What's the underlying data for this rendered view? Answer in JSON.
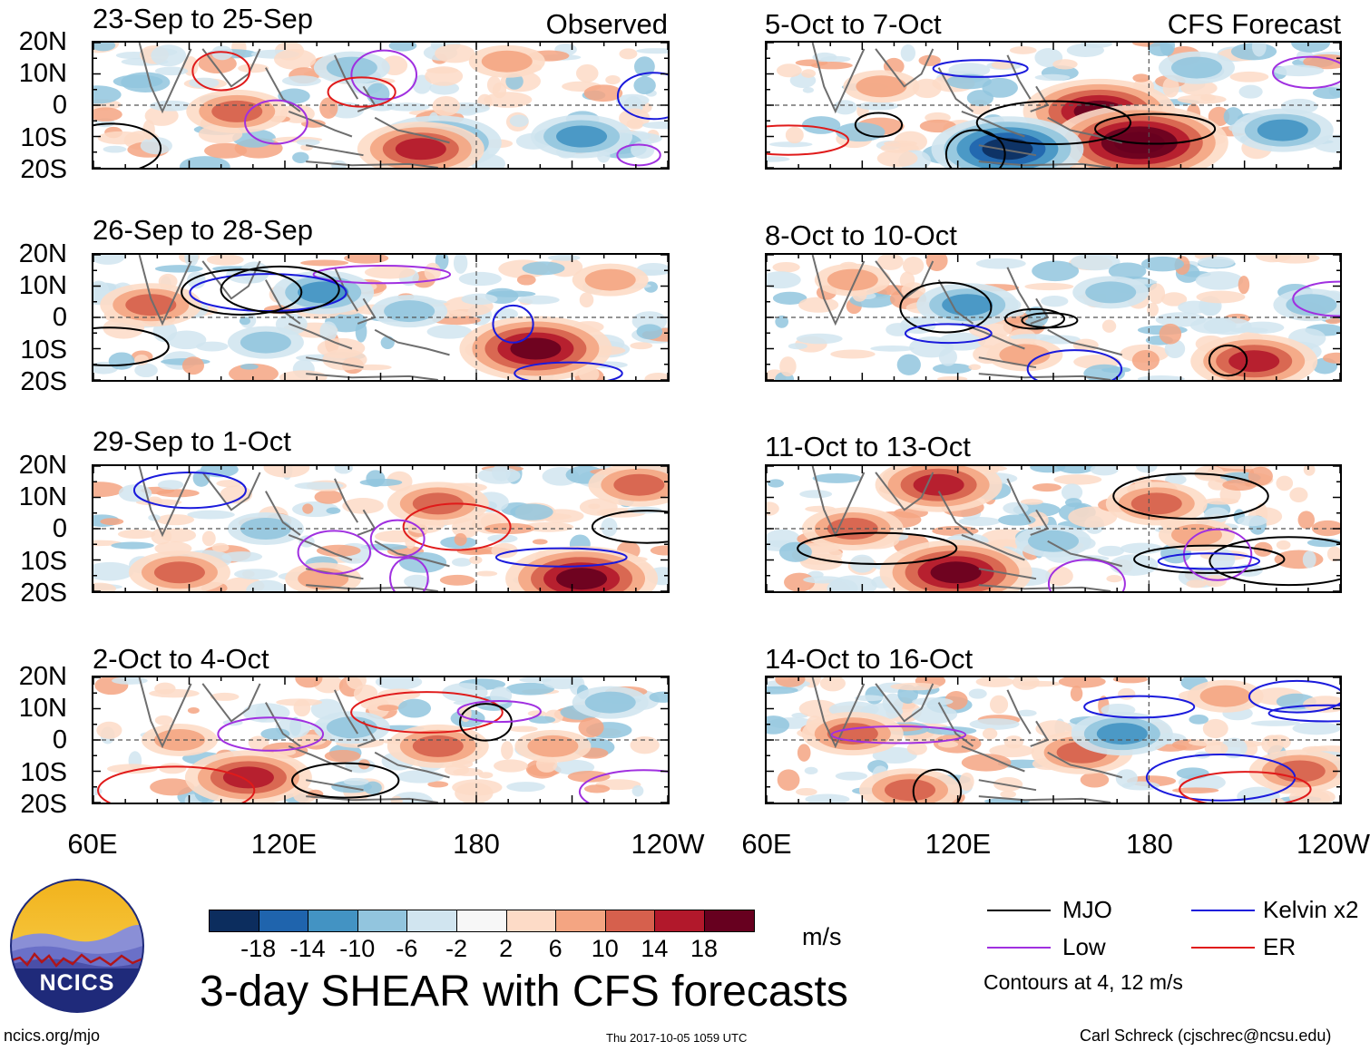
{
  "header": {
    "observed_label": "Observed",
    "forecast_label": "CFS Forecast"
  },
  "panels": {
    "left": [
      {
        "title": "23-Sep to 25-Sep"
      },
      {
        "title": "26-Sep to 28-Sep"
      },
      {
        "title": "29-Sep to 1-Oct"
      },
      {
        "title": "2-Oct to 4-Oct"
      }
    ],
    "right": [
      {
        "title": "5-Oct to 7-Oct"
      },
      {
        "title": "8-Oct to 10-Oct"
      },
      {
        "title": "11-Oct to 13-Oct"
      },
      {
        "title": "14-Oct to 16-Oct"
      }
    ]
  },
  "axes": {
    "lat_ticks": [
      "20N",
      "10N",
      "0",
      "10S",
      "20S"
    ],
    "lon_ticks": [
      "60E",
      "120E",
      "180",
      "120W"
    ]
  },
  "colorbar": {
    "unit": "m/s",
    "labels": [
      "-18",
      "-14",
      "-10",
      "-6",
      "-2",
      "2",
      "6",
      "10",
      "14",
      "18"
    ],
    "colors": [
      "#0c2d5e",
      "#1f64ad",
      "#4393c3",
      "#92c5de",
      "#d1e5f0",
      "#f7f7f7",
      "#fddbc7",
      "#f4a582",
      "#d6604d",
      "#b2182b",
      "#67001f"
    ]
  },
  "legend": {
    "items": [
      {
        "name": "MJO",
        "color": "#000000"
      },
      {
        "name": "Kelvin x2",
        "color": "#1a1adc"
      },
      {
        "name": "Low",
        "color": "#a030e0"
      },
      {
        "name": "ER",
        "color": "#e01a1a"
      }
    ],
    "note": "Contours at 4, 12 m/s"
  },
  "main_title": "3-day SHEAR with CFS forecasts",
  "logo_text": "NCICS",
  "footer": {
    "url": "ncics.org/mjo",
    "timestamp": "Thu 2017-10-05 1059 UTC",
    "author": "Carl Schreck (cjschrec@ncsu.edu)"
  },
  "chart_data": {
    "type": "heatmap",
    "title": "3-day SHEAR with CFS forecasts",
    "variable": "vertical wind shear anomaly",
    "unit": "m/s",
    "color_levels": [
      -18,
      -14,
      -10,
      -6,
      -2,
      2,
      6,
      10,
      14,
      18
    ],
    "x_range": [
      "60E",
      "120W"
    ],
    "y_range": [
      "20S",
      "20N"
    ],
    "contour_levels": [
      4,
      12
    ],
    "contours": [
      "MJO",
      "Kelvin x2",
      "Low",
      "ER"
    ],
    "panels_observed": [
      "23-Sep to 25-Sep",
      "26-Sep to 28-Sep",
      "29-Sep to 1-Oct",
      "2-Oct to 4-Oct"
    ],
    "panels_forecast": [
      "5-Oct to 7-Oct",
      "8-Oct to 10-Oct",
      "11-Oct to 13-Oct",
      "14-Oct to 16-Oct"
    ]
  }
}
